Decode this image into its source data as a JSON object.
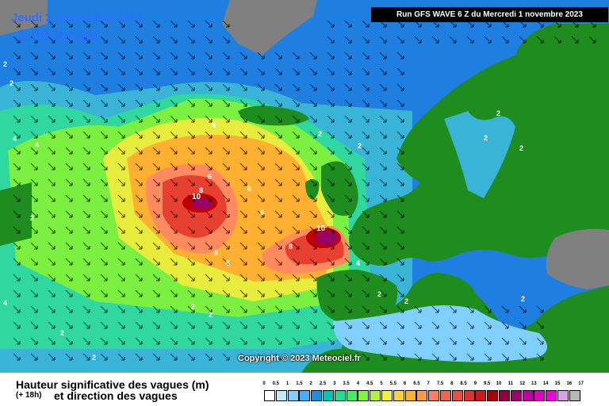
{
  "header": {
    "date": "Jeudi 2 novembre 2023",
    "time": "1:00 locale",
    "run": "Run GFS WAVE 6 Z du Mercredi 1 novembre 2023"
  },
  "copyright": "Copyright © 2023 Meteociel.fr",
  "caption": {
    "line1": "Hauteur significative des vagues (m)",
    "lead": "(+ 18h)",
    "line2": "et direction des vagues"
  },
  "legend": {
    "ticks": [
      "0",
      "0.5",
      "1",
      "1.5",
      "2",
      "2.5",
      "3",
      "3.5",
      "4",
      "4.5",
      "5",
      "5.5",
      "6",
      "6.5",
      "7",
      "7.5",
      "8",
      "8.5",
      "9",
      "9.5",
      "10",
      "11",
      "12",
      "13",
      "14",
      "15",
      "16",
      "17"
    ],
    "colors": [
      "#ffffff",
      "#bfeaff",
      "#7fd0ff",
      "#40b0ff",
      "#1a8fe6",
      "#00c4b4",
      "#1fe090",
      "#3cf060",
      "#7cf83c",
      "#b8f040",
      "#f0f040",
      "#ffd040",
      "#ffb030",
      "#ff9a40",
      "#ff8060",
      "#e86850",
      "#e85040",
      "#e03030",
      "#d01818",
      "#b00000",
      "#900040",
      "#a00070",
      "#c000a0",
      "#e000c0",
      "#f000e0",
      "#d8a0e8",
      "#b8b8b8"
    ]
  },
  "contour_labels": [
    "10",
    "10",
    "8",
    "8",
    "8",
    "8",
    "6",
    "6",
    "6",
    "4",
    "4",
    "4",
    "4",
    "4",
    "2",
    "2",
    "2",
    "2",
    "2",
    "2",
    "2",
    "2",
    "2",
    "2",
    "2",
    "2",
    "2",
    "2",
    "2"
  ],
  "colors": {
    "land": "#1e8c1e",
    "gray_land": "#808080",
    "accent": "#2b6fff"
  }
}
